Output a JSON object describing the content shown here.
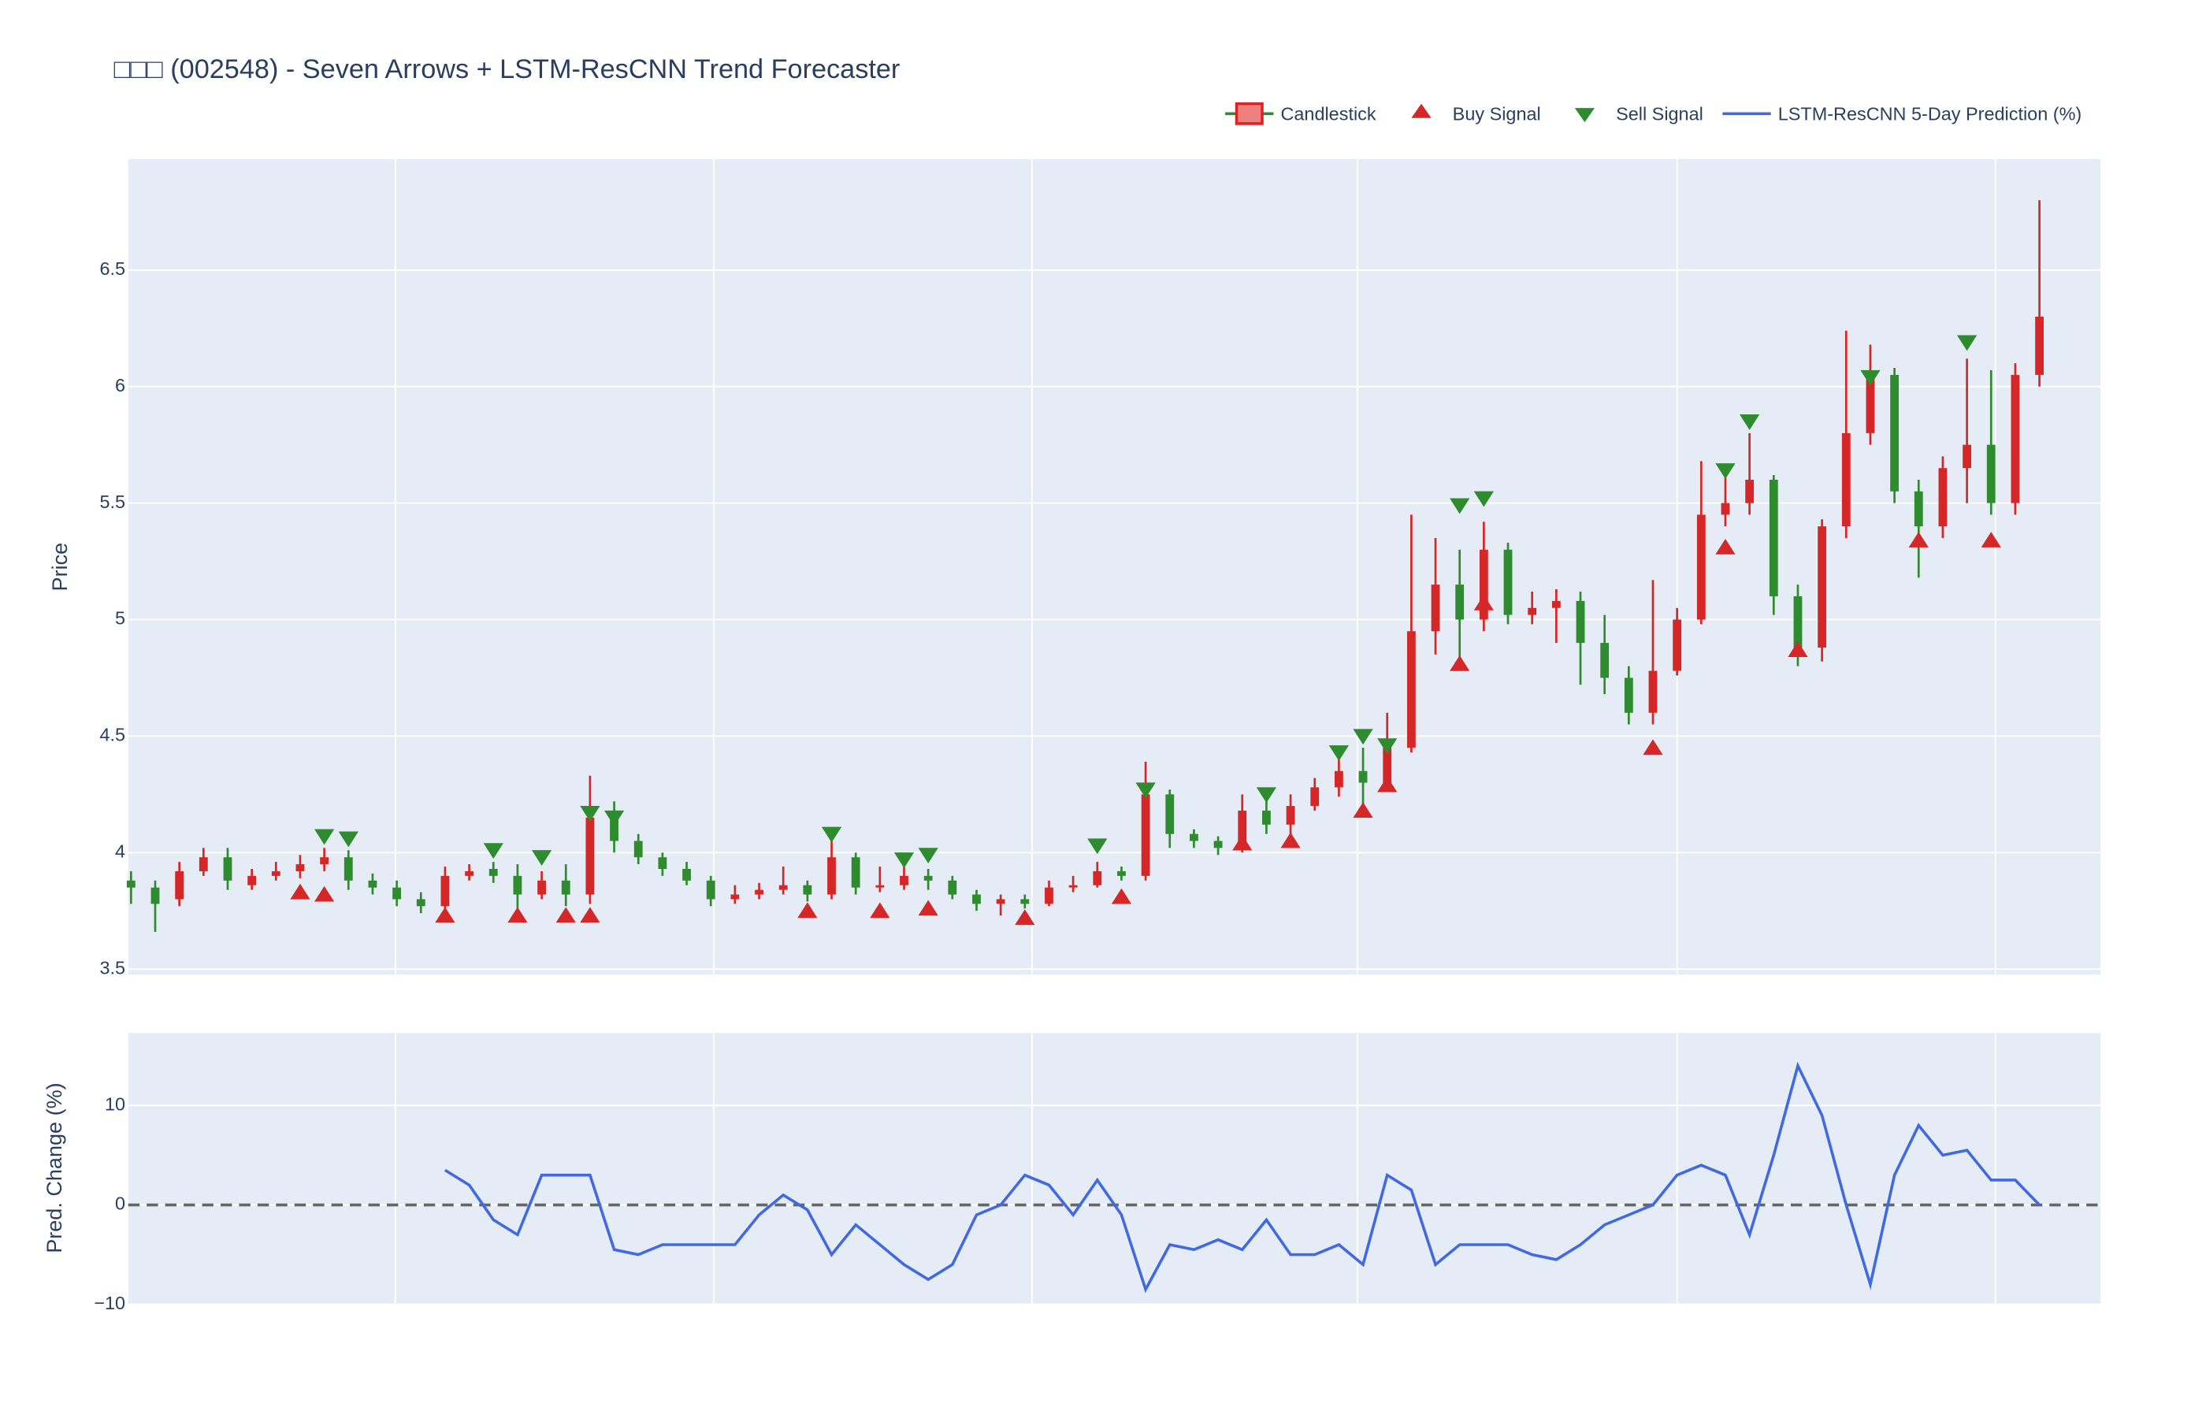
{
  "chart_data": [
    {
      "type": "candlestick",
      "title": "□□□ (002548) - Seven Arrows + LSTM-ResCNN Trend Forecaster",
      "y_label": "Price",
      "ylim": [
        3.476,
        6.976
      ],
      "yticks": [
        3.5,
        4,
        4.5,
        5,
        5.5,
        6,
        6.5
      ],
      "grid": true,
      "legend": "top-right",
      "series": [
        {
          "name": "Candlestick",
          "increasing_color": "#d62728",
          "decreasing_color": "#2e8b2e",
          "open": [
            3.88,
            3.85,
            3.8,
            3.92,
            3.98,
            3.86,
            3.9,
            3.92,
            3.95,
            3.98,
            3.88,
            3.85,
            3.8,
            3.77,
            3.9,
            3.93,
            3.9,
            3.82,
            3.88,
            3.82,
            4.15,
            4.05,
            3.98,
            3.93,
            3.88,
            3.8,
            3.82,
            3.84,
            3.86,
            3.82,
            3.98,
            3.85,
            3.86,
            3.9,
            3.88,
            3.82,
            3.78,
            3.8,
            3.78,
            3.85,
            3.86,
            3.92,
            3.9,
            4.25,
            4.08,
            4.05,
            4.02,
            4.18,
            4.12,
            4.2,
            4.28,
            4.35,
            4.3,
            4.45,
            4.95,
            5.15,
            5.0,
            5.3,
            5.02,
            5.05,
            5.08,
            4.9,
            4.75,
            4.6,
            4.78,
            5.0,
            5.45,
            5.5,
            5.6,
            5.1,
            4.88,
            5.4,
            5.8,
            6.05,
            5.55,
            5.4,
            5.65,
            5.75,
            5.5,
            6.05
          ],
          "high": [
            3.92,
            3.88,
            3.96,
            4.02,
            4.02,
            3.93,
            3.96,
            3.99,
            4.02,
            4.01,
            3.91,
            3.88,
            3.83,
            3.94,
            3.95,
            3.96,
            3.95,
            3.92,
            3.95,
            4.33,
            4.22,
            4.08,
            4.0,
            3.96,
            3.9,
            3.86,
            3.87,
            3.94,
            3.88,
            4.06,
            4.0,
            3.94,
            3.95,
            3.93,
            3.9,
            3.84,
            3.82,
            3.82,
            3.88,
            3.9,
            3.96,
            3.94,
            4.39,
            4.27,
            4.1,
            4.07,
            4.25,
            4.22,
            4.25,
            4.32,
            4.45,
            4.45,
            4.6,
            5.45,
            5.35,
            5.3,
            5.42,
            5.33,
            5.12,
            5.13,
            5.12,
            5.02,
            4.8,
            5.17,
            5.05,
            5.68,
            5.62,
            5.8,
            5.62,
            5.15,
            5.43,
            6.24,
            6.18,
            6.08,
            5.6,
            5.7,
            6.12,
            6.07,
            6.1,
            6.8
          ],
          "low": [
            3.78,
            3.66,
            3.77,
            3.9,
            3.84,
            3.84,
            3.88,
            3.89,
            3.92,
            3.84,
            3.82,
            3.77,
            3.74,
            3.75,
            3.88,
            3.87,
            3.76,
            3.8,
            3.77,
            3.78,
            4.0,
            3.95,
            3.9,
            3.86,
            3.77,
            3.78,
            3.8,
            3.82,
            3.79,
            3.8,
            3.82,
            3.83,
            3.84,
            3.84,
            3.8,
            3.75,
            3.73,
            3.76,
            3.77,
            3.83,
            3.85,
            3.88,
            3.88,
            4.02,
            4.02,
            3.99,
            4.0,
            4.08,
            4.08,
            4.18,
            4.24,
            4.2,
            4.28,
            4.43,
            4.85,
            4.82,
            4.95,
            4.98,
            4.98,
            4.9,
            4.72,
            4.68,
            4.55,
            4.55,
            4.76,
            4.98,
            5.4,
            5.45,
            5.02,
            4.8,
            4.82,
            5.35,
            5.75,
            5.5,
            5.18,
            5.35,
            5.5,
            5.45,
            5.45,
            6.0
          ],
          "close": [
            3.85,
            3.78,
            3.92,
            3.98,
            3.88,
            3.9,
            3.92,
            3.95,
            3.98,
            3.88,
            3.85,
            3.8,
            3.77,
            3.9,
            3.92,
            3.9,
            3.82,
            3.88,
            3.82,
            4.15,
            4.05,
            3.98,
            3.93,
            3.88,
            3.8,
            3.82,
            3.84,
            3.86,
            3.82,
            3.98,
            3.85,
            3.86,
            3.9,
            3.88,
            3.82,
            3.78,
            3.8,
            3.78,
            3.85,
            3.86,
            3.92,
            3.9,
            4.25,
            4.08,
            4.05,
            4.02,
            4.18,
            4.12,
            4.2,
            4.28,
            4.35,
            4.3,
            4.45,
            4.95,
            5.15,
            5.0,
            5.3,
            5.02,
            5.05,
            5.08,
            4.9,
            4.75,
            4.6,
            4.78,
            5.0,
            5.45,
            5.5,
            5.6,
            5.1,
            4.88,
            5.4,
            5.8,
            6.05,
            5.55,
            5.4,
            5.65,
            5.75,
            5.5,
            6.05,
            6.3
          ]
        },
        {
          "name": "Buy Signal",
          "marker": "triangle-up",
          "color": "#d62728",
          "values": [
            null,
            null,
            null,
            null,
            null,
            null,
            null,
            3.83,
            3.82,
            null,
            null,
            null,
            null,
            3.73,
            null,
            null,
            3.73,
            null,
            3.73,
            3.73,
            null,
            null,
            null,
            null,
            null,
            null,
            null,
            null,
            3.75,
            null,
            null,
            3.75,
            null,
            3.76,
            null,
            null,
            null,
            3.72,
            null,
            null,
            null,
            3.81,
            null,
            null,
            null,
            null,
            4.04,
            null,
            4.05,
            null,
            null,
            4.18,
            4.29,
            null,
            null,
            4.81,
            5.07,
            null,
            null,
            null,
            null,
            null,
            null,
            4.45,
            null,
            null,
            5.31,
            null,
            null,
            4.87,
            null,
            null,
            null,
            null,
            5.34,
            null,
            null,
            5.34,
            null,
            null
          ]
        },
        {
          "name": "Sell Signal",
          "marker": "triangle-down",
          "color": "#2e8b2e",
          "values": [
            null,
            null,
            null,
            null,
            null,
            null,
            null,
            null,
            4.07,
            4.06,
            null,
            null,
            null,
            null,
            null,
            4.01,
            null,
            3.98,
            null,
            4.17,
            4.15,
            null,
            null,
            null,
            null,
            null,
            null,
            null,
            null,
            4.08,
            null,
            null,
            3.97,
            3.99,
            null,
            null,
            null,
            null,
            null,
            null,
            4.03,
            null,
            4.27,
            null,
            null,
            null,
            null,
            4.25,
            null,
            null,
            4.43,
            4.5,
            4.46,
            null,
            null,
            5.49,
            5.52,
            null,
            null,
            null,
            null,
            null,
            null,
            null,
            null,
            null,
            5.64,
            5.85,
            null,
            null,
            null,
            null,
            6.04,
            null,
            null,
            null,
            6.19,
            null,
            null,
            null
          ]
        }
      ]
    },
    {
      "type": "line",
      "y_label": "Pred. Change (%)",
      "ylim": [
        -10,
        17.3
      ],
      "yticks": [
        {
          "value": -10,
          "label": "−10"
        },
        0,
        10
      ],
      "grid": true,
      "reference_line": 0,
      "series": [
        {
          "name": "LSTM-ResCNN 5-Day Prediction (%)",
          "color": "#4169e1",
          "values": [
            null,
            null,
            null,
            null,
            null,
            null,
            null,
            null,
            null,
            null,
            null,
            null,
            null,
            3.5,
            2.0,
            -1.5,
            -3,
            3,
            3,
            3,
            -4.5,
            -5,
            -4,
            -4,
            -4,
            -4,
            -1,
            1,
            -0.5,
            -5,
            -2,
            -4,
            -6,
            -7.5,
            -6,
            -1,
            0,
            3,
            2,
            -1,
            2.5,
            -1,
            -8.5,
            -4,
            -4.5,
            -3.5,
            -4.5,
            -1.5,
            -5,
            -5,
            -4,
            -6,
            3,
            1.5,
            -6,
            -4,
            -4,
            -4,
            -5,
            -5.5,
            -4,
            -2,
            -1,
            0,
            3,
            4,
            3,
            -3,
            5,
            14,
            9,
            0,
            -8,
            3,
            8,
            5,
            5.5,
            2.5,
            2.5,
            0
          ]
        }
      ]
    }
  ]
}
